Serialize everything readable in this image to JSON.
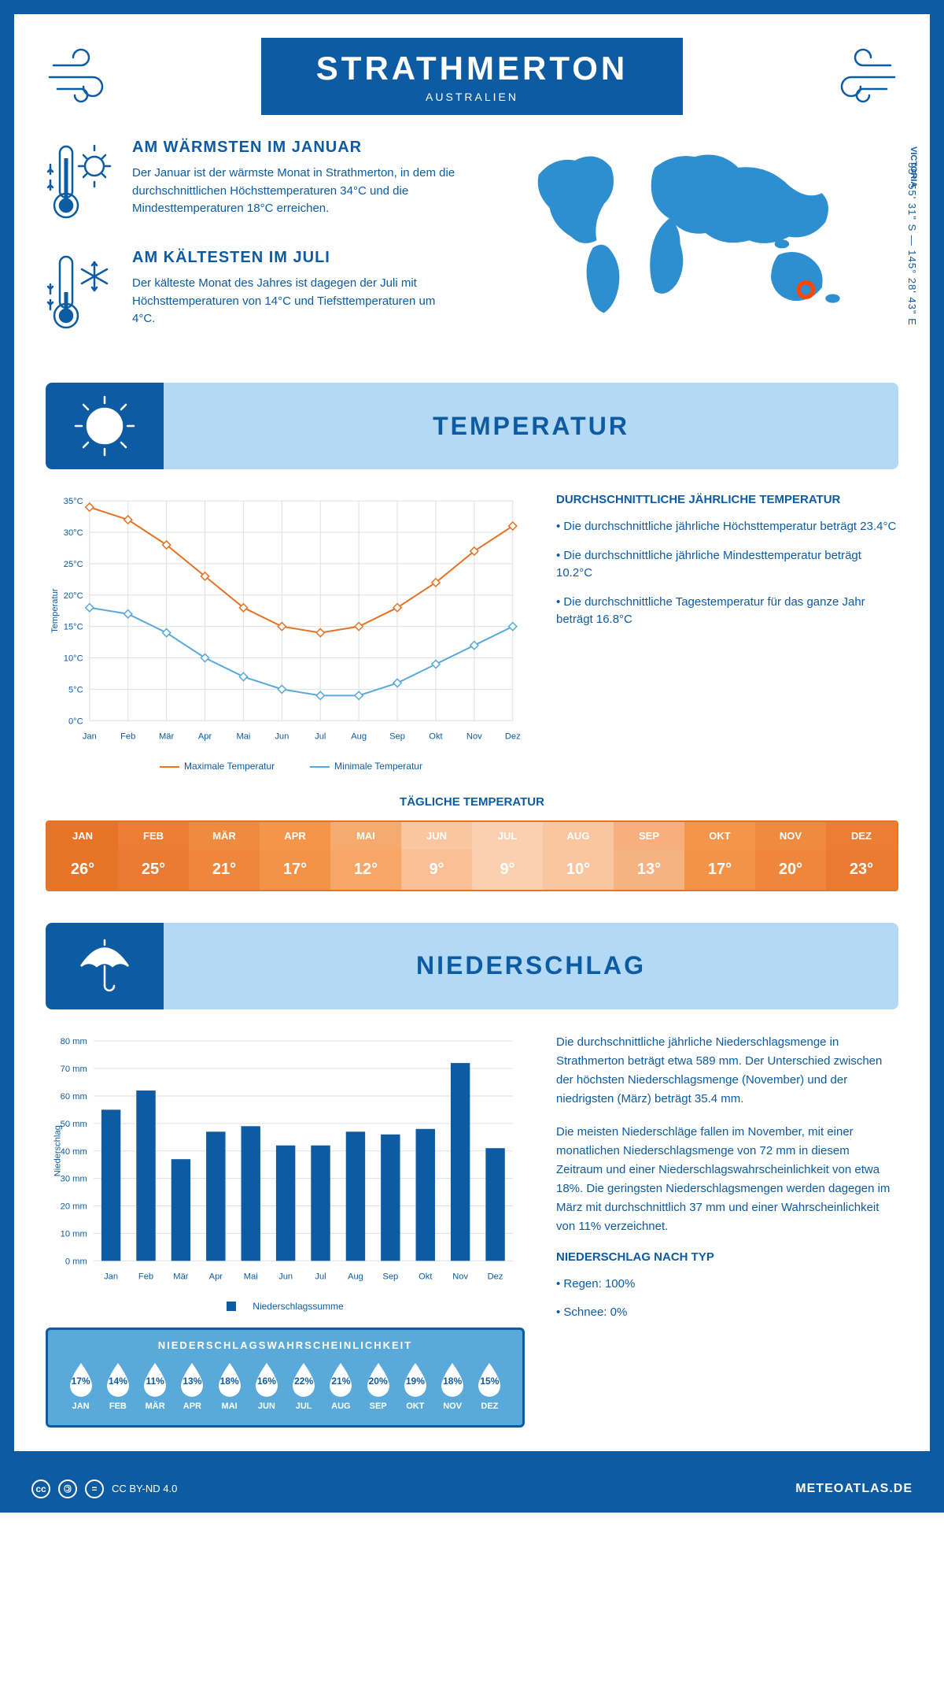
{
  "header": {
    "title": "STRATHMERTON",
    "subtitle": "AUSTRALIEN",
    "region": "VICTORIA",
    "coords": "35° 55' 31\" S — 145° 28' 43\" E"
  },
  "colors": {
    "primary": "#0d5ba3",
    "banner_bg": "#b3d9f5",
    "orange": "#e67326",
    "map_blue": "#2e8fd0",
    "location_marker": "#ff4500",
    "line_max": "#e67326",
    "line_min": "#5aa9db",
    "bar_fill": "#0d5ba3",
    "prob_bg": "#5aa9db"
  },
  "intro": {
    "warm": {
      "heading": "AM WÄRMSTEN IM JANUAR",
      "text": "Der Januar ist der wärmste Monat in Strathmerton, in dem die durchschnittlichen Höchsttemperaturen 34°C und die Mindesttemperaturen 18°C erreichen."
    },
    "cold": {
      "heading": "AM KÄLTESTEN IM JULI",
      "text": "Der kälteste Monat des Jahres ist dagegen der Juli mit Höchsttemperaturen von 14°C und Tiefsttemperaturen um 4°C."
    }
  },
  "section_temperature": "TEMPERATUR",
  "section_precip": "NIEDERSCHLAG",
  "months": [
    "Jan",
    "Feb",
    "Mär",
    "Apr",
    "Mai",
    "Jun",
    "Jul",
    "Aug",
    "Sep",
    "Okt",
    "Nov",
    "Dez"
  ],
  "months_upper": [
    "JAN",
    "FEB",
    "MÄR",
    "APR",
    "MAI",
    "JUN",
    "JUL",
    "AUG",
    "SEP",
    "OKT",
    "NOV",
    "DEZ"
  ],
  "temp_chart": {
    "type": "line",
    "y_label": "Temperatur",
    "ylim": [
      0,
      35
    ],
    "ytick_step": 5,
    "y_suffix": "°C",
    "series": [
      {
        "name": "Maximale Temperatur",
        "color": "#e67326",
        "values": [
          34,
          32,
          28,
          23,
          18,
          15,
          14,
          15,
          18,
          22,
          27,
          31
        ]
      },
      {
        "name": "Minimale Temperatur",
        "color": "#5aa9db",
        "values": [
          18,
          17,
          14,
          10,
          7,
          5,
          4,
          4,
          6,
          9,
          12,
          15
        ]
      }
    ],
    "line_width": 2,
    "marker": "diamond",
    "marker_size": 5,
    "grid_color": "#e0e0e0"
  },
  "temp_info": {
    "heading": "DURCHSCHNITTLICHE JÄHRLICHE TEMPERATUR",
    "bullets": [
      "• Die durchschnittliche jährliche Höchsttemperatur beträgt 23.4°C",
      "• Die durchschnittliche jährliche Mindesttemperatur beträgt 10.2°C",
      "• Die durchschnittliche Tagestemperatur für das ganze Jahr beträgt 16.8°C"
    ]
  },
  "daily_temp": {
    "heading": "TÄGLICHE TEMPERATUR",
    "values": [
      26,
      25,
      21,
      17,
      12,
      9,
      9,
      10,
      13,
      17,
      20,
      23
    ],
    "colors_header": [
      "#e67326",
      "#eb7e32",
      "#ef8a3f",
      "#f3964b",
      "#f7aa6e",
      "#fac69f",
      "#fad0b0",
      "#fac69f",
      "#f7b07d",
      "#f3964b",
      "#ef8a3f",
      "#eb7e32"
    ],
    "colors_value": [
      "#e67326",
      "#ea7a2f",
      "#ee873b",
      "#f29348",
      "#f6a766",
      "#f9c096",
      "#fad0b0",
      "#f9c69f",
      "#f6b280",
      "#f29348",
      "#ee873b",
      "#ea7a2f"
    ]
  },
  "precip_chart": {
    "type": "bar",
    "y_label": "Niederschlag",
    "ylim": [
      0,
      80
    ],
    "ytick_step": 10,
    "y_suffix": " mm",
    "values": [
      55,
      62,
      37,
      47,
      49,
      42,
      42,
      47,
      46,
      48,
      72,
      41
    ],
    "bar_color": "#0d5ba3",
    "bar_width": 0.55,
    "grid_color": "#e0e0e0",
    "legend": "Niederschlagssumme"
  },
  "precip_info": {
    "para1": "Die durchschnittliche jährliche Niederschlagsmenge in Strathmerton beträgt etwa 589 mm. Der Unterschied zwischen der höchsten Niederschlagsmenge (November) und der niedrigsten (März) beträgt 35.4 mm.",
    "para2": "Die meisten Niederschläge fallen im November, mit einer monatlichen Niederschlagsmenge von 72 mm in diesem Zeitraum und einer Niederschlagswahrscheinlichkeit von etwa 18%. Die geringsten Niederschlagsmengen werden dagegen im März mit durchschnittlich 37 mm und einer Wahrscheinlichkeit von 11% verzeichnet.",
    "type_heading": "NIEDERSCHLAG NACH TYP",
    "type_bullets": [
      "• Regen: 100%",
      "• Schnee: 0%"
    ]
  },
  "precip_prob": {
    "heading": "NIEDERSCHLAGSWAHRSCHEINLICHKEIT",
    "values": [
      17,
      14,
      11,
      13,
      18,
      16,
      22,
      21,
      20,
      19,
      18,
      15
    ]
  },
  "footer": {
    "license": "CC BY-ND 4.0",
    "site": "METEOATLAS.DE"
  }
}
